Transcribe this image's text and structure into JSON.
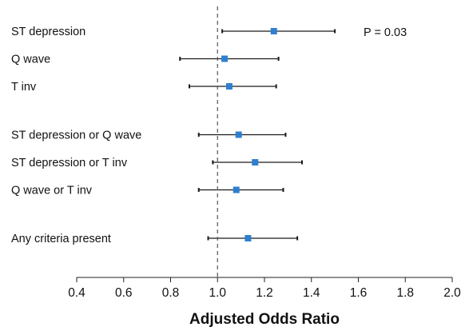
{
  "chart_data": {
    "type": "forest",
    "xlabel": "Adjusted Odds Ratio",
    "xlim": [
      0.4,
      2.0
    ],
    "xticks": [
      0.4,
      0.6,
      0.8,
      1.0,
      1.2,
      1.4,
      1.6,
      1.8,
      2.0
    ],
    "xtick_labels": [
      "0.4",
      "0.6",
      "0.8",
      "1.0",
      "1.2",
      "1.4",
      "1.6",
      "1.8",
      "2.0"
    ],
    "reference_line": 1.0,
    "annotation": "P = 0.03",
    "marker_color": "#2f7fcf",
    "rows": [
      {
        "label": "ST depression",
        "or": 1.24,
        "lower": 1.02,
        "upper": 1.5,
        "group": 0
      },
      {
        "label": "Q wave",
        "or": 1.03,
        "lower": 0.84,
        "upper": 1.26,
        "group": 0
      },
      {
        "label": "T inv",
        "or": 1.05,
        "lower": 0.88,
        "upper": 1.25,
        "group": 0
      },
      {
        "label": "ST depression or Q wave",
        "or": 1.09,
        "lower": 0.92,
        "upper": 1.29,
        "group": 1
      },
      {
        "label": "ST depression or T inv",
        "or": 1.16,
        "lower": 0.98,
        "upper": 1.36,
        "group": 1
      },
      {
        "label": "Q wave or T inv",
        "or": 1.08,
        "lower": 0.92,
        "upper": 1.28,
        "group": 1
      },
      {
        "label": "Any criteria present",
        "or": 1.13,
        "lower": 0.96,
        "upper": 1.34,
        "group": 2
      }
    ]
  }
}
